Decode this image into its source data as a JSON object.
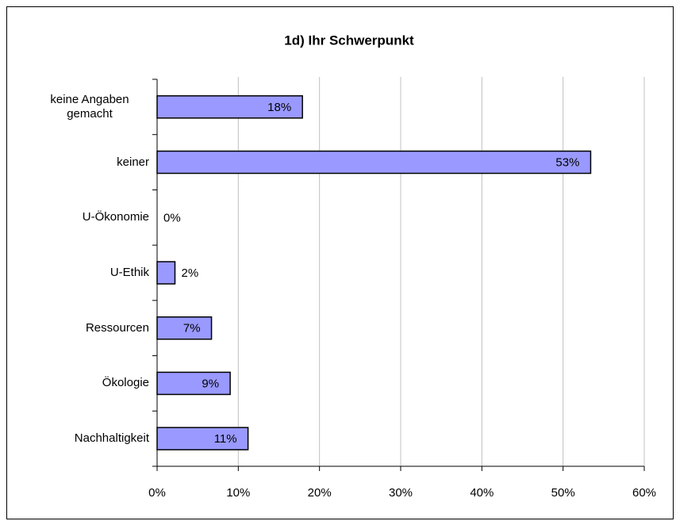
{
  "chart_data": {
    "type": "hbar",
    "title": "1d) Ihr Schwerpunkt",
    "categories": [
      "keine Angaben gemacht",
      "keiner",
      "U-Ökonomie",
      "U-Ethik",
      "Ressourcen",
      "Ökologie",
      "Nachhaltigkeit"
    ],
    "values": [
      17.9,
      53.4,
      0,
      2.2,
      6.7,
      9,
      11.2
    ],
    "value_labels": [
      "18%",
      "53%",
      "0%",
      "2%",
      "7%",
      "9%",
      "11%"
    ],
    "color": "#9999ff",
    "xlim": [
      0,
      60
    ],
    "xticks": [
      {
        "value": 0,
        "label": "0%"
      },
      {
        "value": 10,
        "label": "10%"
      },
      {
        "value": 20,
        "label": "20%"
      },
      {
        "value": 30,
        "label": "30%"
      },
      {
        "value": 40,
        "label": "40%"
      },
      {
        "value": 50,
        "label": "50%"
      },
      {
        "value": 60,
        "label": "60%"
      }
    ],
    "grid": true
  }
}
